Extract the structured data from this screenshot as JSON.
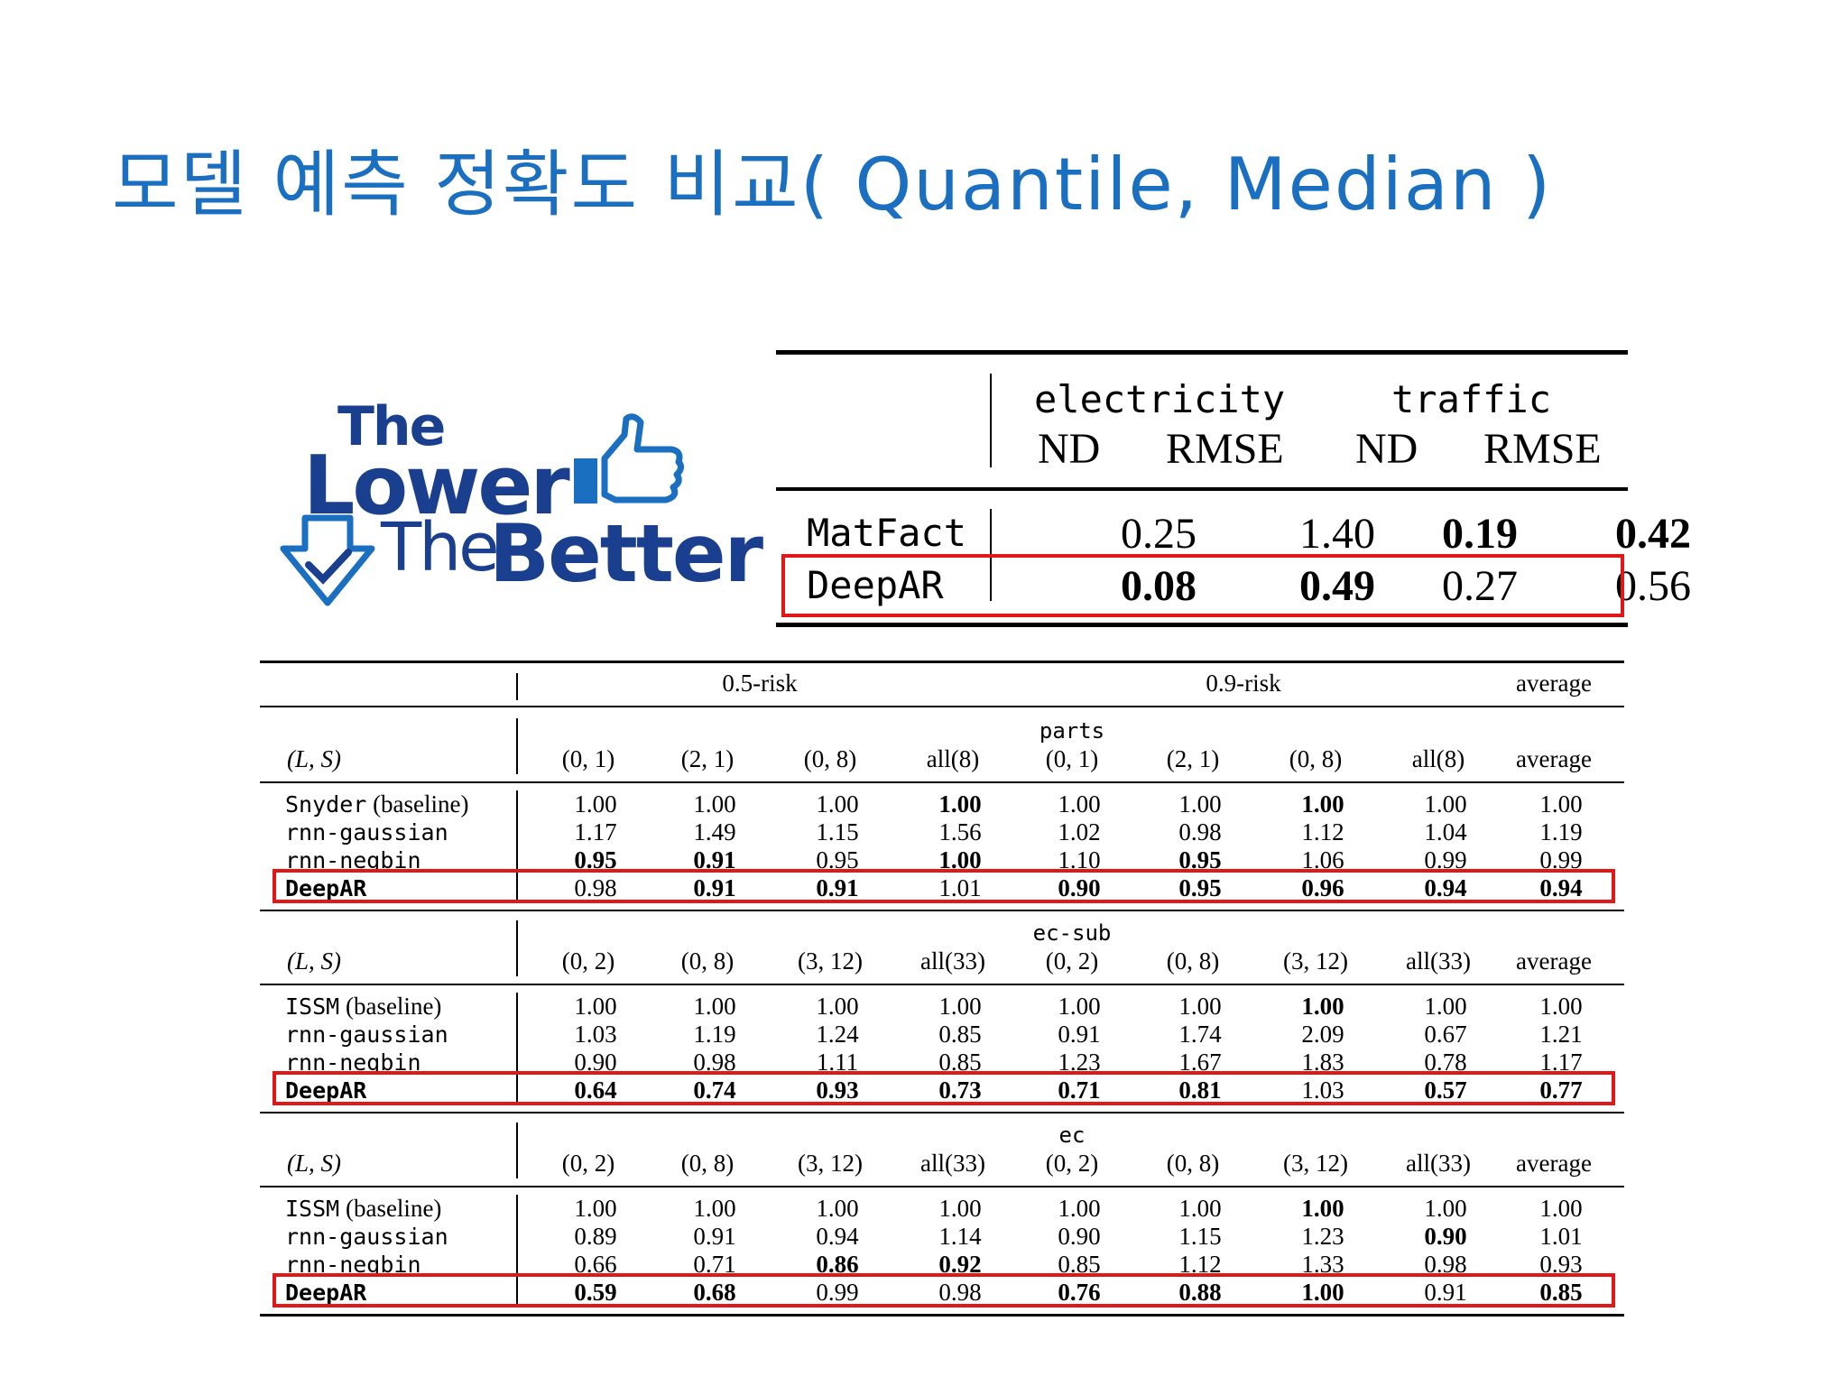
{
  "title": "모델 예측 정확도 비교( Quantile, Median )",
  "logo": {
    "line1": "The",
    "line2": "Lower",
    "line3": "The",
    "line4": "Better"
  },
  "top_table": {
    "groups": [
      "electricity",
      "traffic"
    ],
    "subheaders": [
      "ND",
      "RMSE",
      "ND",
      "RMSE"
    ],
    "rows": [
      {
        "name": "MatFact",
        "values": [
          "0.25",
          "1.40",
          "0.19",
          "0.42"
        ],
        "bold": [
          false,
          false,
          true,
          true
        ]
      },
      {
        "name": "DeepAR",
        "values": [
          "0.08",
          "0.49",
          "0.27",
          "0.56"
        ],
        "bold": [
          true,
          true,
          false,
          false
        ],
        "highlight": true
      }
    ]
  },
  "bottom": {
    "top_headers": [
      "0.5-risk",
      "0.9-risk",
      "average"
    ],
    "blocks": [
      {
        "dataset": "parts",
        "ls_label": "(L, S)",
        "cols": [
          "(0, 1)",
          "(2, 1)",
          "(0, 8)",
          "all(8)",
          "(0, 1)",
          "(2, 1)",
          "(0, 8)",
          "all(8)",
          "average"
        ],
        "rows": [
          {
            "name": "Snyder",
            "suffix": " (baseline)",
            "values": [
              "1.00",
              "1.00",
              "1.00",
              "1.00",
              "1.00",
              "1.00",
              "1.00",
              "1.00",
              "1.00"
            ],
            "bold": [
              0,
              0,
              0,
              1,
              0,
              0,
              1,
              0,
              0
            ]
          },
          {
            "name": "rnn-gaussian",
            "suffix": "",
            "values": [
              "1.17",
              "1.49",
              "1.15",
              "1.56",
              "1.02",
              "0.98",
              "1.12",
              "1.04",
              "1.19"
            ],
            "bold": [
              0,
              0,
              0,
              0,
              0,
              0,
              0,
              0,
              0
            ]
          },
          {
            "name": "rnn-negbin",
            "suffix": "",
            "values": [
              "0.95",
              "0.91",
              "0.95",
              "1.00",
              "1.10",
              "0.95",
              "1.06",
              "0.99",
              "0.99"
            ],
            "bold": [
              1,
              1,
              0,
              1,
              0,
              1,
              0,
              0,
              0
            ]
          },
          {
            "name": "DeepAR",
            "suffix": "",
            "values": [
              "0.98",
              "0.91",
              "0.91",
              "1.01",
              "0.90",
              "0.95",
              "0.96",
              "0.94",
              "0.94"
            ],
            "bold": [
              0,
              1,
              1,
              0,
              1,
              1,
              1,
              1,
              1
            ],
            "highlight": true
          }
        ]
      },
      {
        "dataset": "ec-sub",
        "ls_label": "(L, S)",
        "cols": [
          "(0, 2)",
          "(0, 8)",
          "(3, 12)",
          "all(33)",
          "(0, 2)",
          "(0, 8)",
          "(3, 12)",
          "all(33)",
          "average"
        ],
        "rows": [
          {
            "name": "ISSM",
            "suffix": " (baseline)",
            "values": [
              "1.00",
              "1.00",
              "1.00",
              "1.00",
              "1.00",
              "1.00",
              "1.00",
              "1.00",
              "1.00"
            ],
            "bold": [
              0,
              0,
              0,
              0,
              0,
              0,
              1,
              0,
              0
            ]
          },
          {
            "name": "rnn-gaussian",
            "suffix": "",
            "values": [
              "1.03",
              "1.19",
              "1.24",
              "0.85",
              "0.91",
              "1.74",
              "2.09",
              "0.67",
              "1.21"
            ],
            "bold": [
              0,
              0,
              0,
              0,
              0,
              0,
              0,
              0,
              0
            ]
          },
          {
            "name": "rnn-negbin",
            "suffix": "",
            "values": [
              "0.90",
              "0.98",
              "1.11",
              "0.85",
              "1.23",
              "1.67",
              "1.83",
              "0.78",
              "1.17"
            ],
            "bold": [
              0,
              0,
              0,
              0,
              0,
              0,
              0,
              0,
              0
            ]
          },
          {
            "name": "DeepAR",
            "suffix": "",
            "values": [
              "0.64",
              "0.74",
              "0.93",
              "0.73",
              "0.71",
              "0.81",
              "1.03",
              "0.57",
              "0.77"
            ],
            "bold": [
              1,
              1,
              1,
              1,
              1,
              1,
              0,
              1,
              1
            ],
            "highlight": true
          }
        ]
      },
      {
        "dataset": "ec",
        "ls_label": "(L, S)",
        "cols": [
          "(0, 2)",
          "(0, 8)",
          "(3, 12)",
          "all(33)",
          "(0, 2)",
          "(0, 8)",
          "(3, 12)",
          "all(33)",
          "average"
        ],
        "rows": [
          {
            "name": "ISSM",
            "suffix": " (baseline)",
            "values": [
              "1.00",
              "1.00",
              "1.00",
              "1.00",
              "1.00",
              "1.00",
              "1.00",
              "1.00",
              "1.00"
            ],
            "bold": [
              0,
              0,
              0,
              0,
              0,
              0,
              1,
              0,
              0
            ]
          },
          {
            "name": "rnn-gaussian",
            "suffix": "",
            "values": [
              "0.89",
              "0.91",
              "0.94",
              "1.14",
              "0.90",
              "1.15",
              "1.23",
              "0.90",
              "1.01"
            ],
            "bold": [
              0,
              0,
              0,
              0,
              0,
              0,
              0,
              1,
              0
            ]
          },
          {
            "name": "rnn-negbin",
            "suffix": "",
            "values": [
              "0.66",
              "0.71",
              "0.86",
              "0.92",
              "0.85",
              "1.12",
              "1.33",
              "0.98",
              "0.93"
            ],
            "bold": [
              0,
              0,
              1,
              1,
              0,
              0,
              0,
              0,
              0
            ]
          },
          {
            "name": "DeepAR",
            "suffix": "",
            "values": [
              "0.59",
              "0.68",
              "0.99",
              "0.98",
              "0.76",
              "0.88",
              "1.00",
              "0.91",
              "0.85"
            ],
            "bold": [
              1,
              1,
              0,
              0,
              1,
              1,
              1,
              0,
              1
            ],
            "highlight": true
          }
        ]
      }
    ]
  },
  "colors": {
    "title": "#1a6fc0",
    "logo": "#1a3f8f",
    "highlight": "#e01818"
  }
}
